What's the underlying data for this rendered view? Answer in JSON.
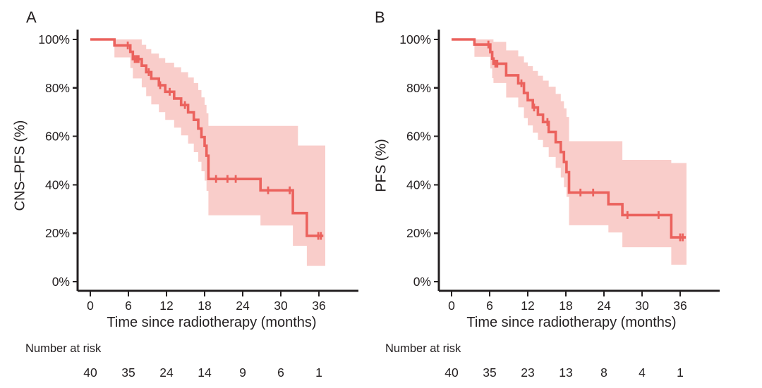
{
  "figure": {
    "background_color": "#ffffff",
    "text_color": "#231f20",
    "axis_color": "#231f20",
    "curve_color": "#eb625d",
    "band_color": "#f9cdca",
    "risk_label": "Number at risk",
    "x_axis_title": "Time since radiotherapy (months)",
    "panels": [
      {
        "label": "A",
        "y_axis_title": "CNS–PFS (%)"
      },
      {
        "label": "B",
        "y_axis_title": "PFS (%)"
      }
    ]
  },
  "chart_data": [
    {
      "type": "line",
      "variant": "kaplan_meier_step_with_ci_band",
      "title": "",
      "xlabel": "Time since radiotherapy (months)",
      "ylabel": "CNS–PFS (%)",
      "xlim": [
        0,
        38
      ],
      "ylim": [
        0,
        100
      ],
      "grid": false,
      "legend": "none",
      "x_ticks": [
        0,
        6,
        12,
        18,
        24,
        30,
        36
      ],
      "y_ticks": [
        {
          "value": 0,
          "label": "0%"
        },
        {
          "value": 20,
          "label": "20%"
        },
        {
          "value": 40,
          "label": "40%"
        },
        {
          "value": 60,
          "label": "60%"
        },
        {
          "value": 80,
          "label": "80%"
        },
        {
          "value": 100,
          "label": "100%"
        }
      ],
      "survival_steps": [
        [
          0,
          100
        ],
        [
          3.8,
          97.5
        ],
        [
          6.3,
          94.9
        ],
        [
          6.7,
          91.9
        ],
        [
          8.1,
          89.2
        ],
        [
          8.8,
          86.5
        ],
        [
          9.6,
          83.8
        ],
        [
          10.8,
          81.1
        ],
        [
          11.8,
          78.4
        ],
        [
          13.2,
          75.6
        ],
        [
          14.3,
          72.9
        ],
        [
          15.4,
          69.9
        ],
        [
          16.3,
          66.8
        ],
        [
          17.0,
          63.2
        ],
        [
          17.5,
          59.7
        ],
        [
          18.0,
          56.1
        ],
        [
          18.3,
          52.0
        ],
        [
          18.6,
          42.4
        ],
        [
          26.8,
          37.7
        ],
        [
          31.9,
          28.3
        ],
        [
          34.1,
          18.9
        ]
      ],
      "curve_end_time": 36.7,
      "censor_marks": [
        [
          5.9,
          97.5
        ],
        [
          7.0,
          91.9
        ],
        [
          7.3,
          91.9
        ],
        [
          7.6,
          91.9
        ],
        [
          9.2,
          86.5
        ],
        [
          11.0,
          81.1
        ],
        [
          12.5,
          78.4
        ],
        [
          14.9,
          72.9
        ],
        [
          19.8,
          42.4
        ],
        [
          21.6,
          42.4
        ],
        [
          22.9,
          42.4
        ],
        [
          28.0,
          37.7
        ],
        [
          31.4,
          37.7
        ],
        [
          35.9,
          18.9
        ],
        [
          36.3,
          18.9
        ]
      ],
      "ci_band": [
        [
          3.8,
          92.6,
          100
        ],
        [
          6.3,
          88.2,
          100
        ],
        [
          6.7,
          83.9,
          100
        ],
        [
          8.1,
          80.2,
          97.8
        ],
        [
          8.8,
          76.6,
          96.0
        ],
        [
          9.6,
          73.2,
          94.2
        ],
        [
          10.8,
          70.0,
          92.3
        ],
        [
          11.8,
          66.8,
          90.4
        ],
        [
          13.2,
          63.6,
          88.5
        ],
        [
          14.3,
          60.4,
          86.5
        ],
        [
          15.4,
          57.0,
          84.3
        ],
        [
          16.3,
          53.5,
          82.0
        ],
        [
          17.0,
          49.5,
          79.1
        ],
        [
          17.5,
          45.6,
          76.1
        ],
        [
          18.0,
          41.7,
          73.0
        ],
        [
          18.3,
          37.5,
          69.5
        ],
        [
          18.6,
          27.4,
          64.3
        ],
        [
          26.8,
          23.2,
          64.3
        ],
        [
          31.9,
          14.8,
          64.3
        ],
        [
          32.7,
          14.8,
          56.2
        ],
        [
          34.1,
          6.5,
          56.2
        ]
      ],
      "ci_band_end_time": 37.0,
      "number_at_risk": {
        "times": [
          0,
          6,
          12,
          18,
          24,
          30,
          36
        ],
        "counts": [
          40,
          35,
          24,
          14,
          9,
          6,
          1
        ]
      }
    },
    {
      "type": "line",
      "variant": "kaplan_meier_step_with_ci_band",
      "title": "",
      "xlabel": "Time since radiotherapy (months)",
      "ylabel": "PFS (%)",
      "xlim": [
        0,
        38
      ],
      "ylim": [
        0,
        100
      ],
      "grid": false,
      "legend": "none",
      "x_ticks": [
        0,
        6,
        12,
        18,
        24,
        30,
        36
      ],
      "y_ticks": [
        {
          "value": 0,
          "label": "0%"
        },
        {
          "value": 20,
          "label": "20%"
        },
        {
          "value": 40,
          "label": "40%"
        },
        {
          "value": 60,
          "label": "60%"
        },
        {
          "value": 80,
          "label": "80%"
        },
        {
          "value": 100,
          "label": "100%"
        }
      ],
      "survival_steps": [
        [
          0,
          100
        ],
        [
          3.6,
          97.9
        ],
        [
          6.1,
          94.8
        ],
        [
          6.4,
          92.1
        ],
        [
          6.6,
          90.0
        ],
        [
          8.6,
          85.2
        ],
        [
          10.5,
          81.9
        ],
        [
          11.4,
          77.9
        ],
        [
          12.0,
          74.9
        ],
        [
          12.8,
          71.9
        ],
        [
          13.6,
          68.9
        ],
        [
          14.4,
          65.9
        ],
        [
          15.3,
          61.8
        ],
        [
          16.4,
          57.6
        ],
        [
          17.2,
          53.5
        ],
        [
          17.7,
          49.4
        ],
        [
          18.1,
          45.2
        ],
        [
          18.5,
          36.8
        ],
        [
          24.7,
          32.0
        ],
        [
          26.9,
          27.5
        ],
        [
          34.6,
          18.3
        ]
      ],
      "curve_end_time": 36.9,
      "censor_marks": [
        [
          5.8,
          97.9
        ],
        [
          6.9,
          90.0
        ],
        [
          7.2,
          90.0
        ],
        [
          11.0,
          81.9
        ],
        [
          13.0,
          71.9
        ],
        [
          15.1,
          65.9
        ],
        [
          20.3,
          36.8
        ],
        [
          22.3,
          36.8
        ],
        [
          27.7,
          27.5
        ],
        [
          32.6,
          27.5
        ],
        [
          36.0,
          18.3
        ],
        [
          36.4,
          18.3
        ]
      ],
      "ci_band": [
        [
          3.6,
          92.8,
          100
        ],
        [
          6.1,
          88.0,
          100
        ],
        [
          6.4,
          84.0,
          100
        ],
        [
          6.6,
          82.0,
          99.0
        ],
        [
          8.6,
          76.0,
          95.5
        ],
        [
          10.5,
          72.0,
          93.0
        ],
        [
          11.4,
          67.5,
          90.5
        ],
        [
          12.0,
          64.5,
          89.0
        ],
        [
          12.8,
          61.5,
          87.0
        ],
        [
          13.6,
          58.5,
          85.0
        ],
        [
          14.4,
          55.5,
          83.0
        ],
        [
          15.3,
          51.5,
          80.5
        ],
        [
          16.4,
          47.0,
          77.5
        ],
        [
          17.2,
          43.0,
          74.5
        ],
        [
          17.7,
          39.0,
          71.5
        ],
        [
          18.1,
          35.0,
          68.0
        ],
        [
          18.5,
          23.3,
          58.0
        ],
        [
          24.7,
          20.3,
          58.0
        ],
        [
          26.9,
          14.2,
          50.3
        ],
        [
          34.6,
          7.0,
          49.0
        ]
      ],
      "ci_band_end_time": 37.0,
      "number_at_risk": {
        "times": [
          0,
          6,
          12,
          18,
          24,
          30,
          36
        ],
        "counts": [
          40,
          35,
          23,
          13,
          8,
          4,
          1
        ]
      }
    }
  ]
}
